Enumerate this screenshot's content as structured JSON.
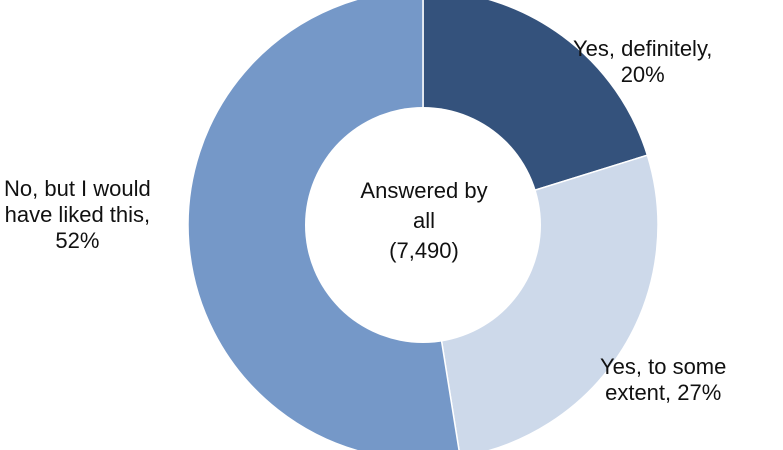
{
  "chart_data": {
    "type": "pie",
    "variant": "donut",
    "center_label": [
      "Answered by",
      "all",
      "(7,490)"
    ],
    "slices": [
      {
        "line1": "Yes, definitely,",
        "line2": "20%",
        "value": 20,
        "color": "#34527C"
      },
      {
        "line1": "Yes, to some",
        "line2": "extent, 27%",
        "value": 27,
        "color": "#CDD9EA"
      },
      {
        "line1": "No, but I would",
        "line2": "have liked this,",
        "line3": "52%",
        "value": 52,
        "color": "#7598C8"
      }
    ]
  }
}
